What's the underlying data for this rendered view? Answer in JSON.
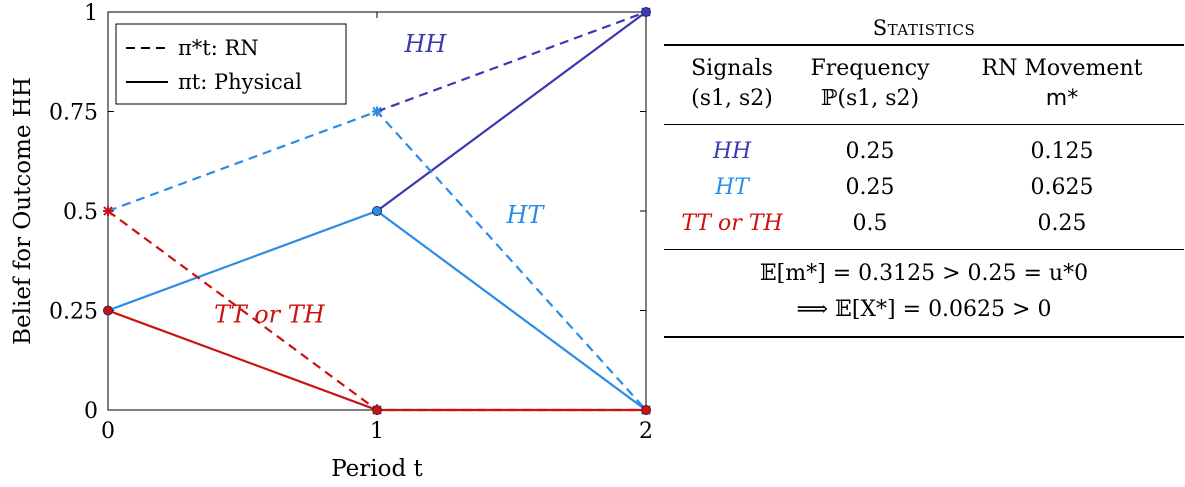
{
  "chart_data": {
    "type": "line",
    "xlabel": "Period t",
    "ylabel": "Belief for Outcome HH",
    "xlim": [
      0,
      2
    ],
    "ylim": [
      0,
      1
    ],
    "x_ticks": [
      "0",
      "1",
      "2"
    ],
    "y_ticks": [
      "0",
      "0.25",
      "0.5",
      "0.75",
      "1"
    ],
    "grid": false,
    "legend_position": "top-left",
    "legend": [
      {
        "symbol": "π*t: RN",
        "style": "dashed"
      },
      {
        "symbol": "πt: Physical",
        "style": "solid"
      }
    ],
    "series": [
      {
        "name": "HH",
        "style": "dashed",
        "color": "#3a3ab0",
        "x": [
          1,
          2
        ],
        "y": [
          0.75,
          1
        ]
      },
      {
        "name": "HH",
        "style": "solid",
        "color": "#3a3ab0",
        "x": [
          1,
          2
        ],
        "y": [
          0.5,
          1
        ]
      },
      {
        "name": "HT",
        "style": "dashed",
        "color": "#2b8ce6",
        "x": [
          0,
          1,
          2
        ],
        "y": [
          0.5,
          0.75,
          0
        ]
      },
      {
        "name": "HT",
        "style": "solid",
        "color": "#2b8ce6",
        "x": [
          0,
          1,
          2
        ],
        "y": [
          0.25,
          0.5,
          0
        ]
      },
      {
        "name": "TT or TH",
        "style": "dashed",
        "color": "#cc1111",
        "x": [
          0,
          1,
          2
        ],
        "y": [
          0.5,
          0,
          0
        ]
      },
      {
        "name": "TT or TH",
        "style": "solid",
        "color": "#cc1111",
        "x": [
          0,
          1,
          2
        ],
        "y": [
          0.25,
          0,
          0
        ]
      }
    ],
    "annotations": [
      {
        "text": "HH",
        "color": "#3a3ab0",
        "x": 1.18,
        "y": 0.9
      },
      {
        "text": "HT",
        "color": "#2b8ce6",
        "x": 1.55,
        "y": 0.47
      },
      {
        "text": "TT or TH",
        "color": "#cc1111",
        "x": 0.6,
        "y": 0.22
      }
    ]
  },
  "stats": {
    "title": "Statistics",
    "headers": {
      "signals": [
        "Signals",
        "(s1, s2)"
      ],
      "frequency": [
        "Frequency",
        "ℙ(s1, s2)"
      ],
      "movement": [
        "RN Movement",
        "m*"
      ]
    },
    "rows": [
      {
        "signal": "HH",
        "frequency": "0.25",
        "movement": "0.125",
        "color": "#3a3ab0"
      },
      {
        "signal": "HT",
        "frequency": "0.25",
        "movement": "0.625",
        "color": "#2b8ce6"
      },
      {
        "signal": "TT or TH",
        "frequency": "0.5",
        "movement": "0.25",
        "color": "#cc1111"
      }
    ],
    "footer": [
      "𝔼[m*] = 0.3125 > 0.25 = u*0",
      "⟹ 𝔼[X*] = 0.0625 > 0"
    ]
  }
}
